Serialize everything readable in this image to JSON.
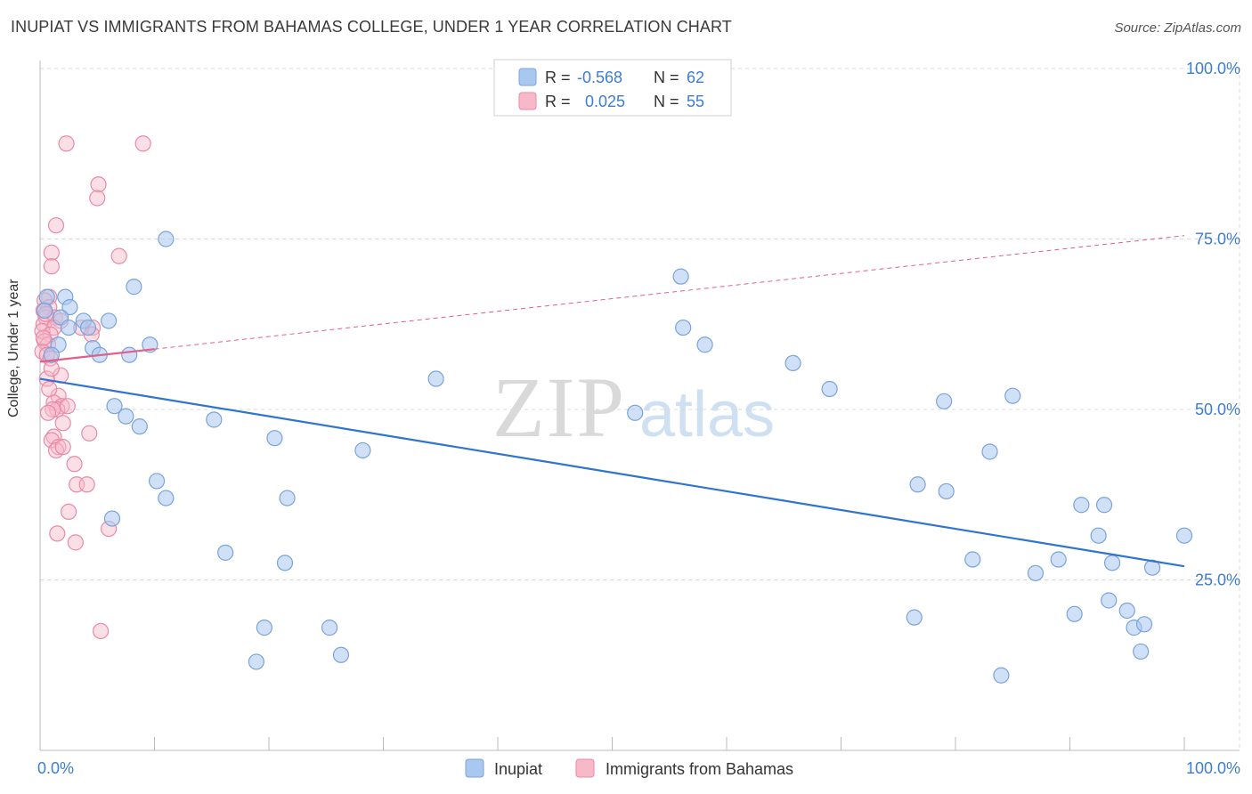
{
  "title": "INUPIAT VS IMMIGRANTS FROM BAHAMAS COLLEGE, UNDER 1 YEAR CORRELATION CHART",
  "source": "Source: ZipAtlas.com",
  "watermark": {
    "zip": "ZIP",
    "atlas": "atlas"
  },
  "legend_top": [
    {
      "r_label": "R =",
      "r_value": "-0.568",
      "n_label": "N =",
      "n_value": "62"
    },
    {
      "r_label": "R =",
      "r_value": "0.025",
      "n_label": "N =",
      "n_value": "55"
    }
  ],
  "colors": {
    "blue_fill": "#a9c8f0",
    "blue_stroke": "#7aa3db",
    "blue_line": "#2e74d0",
    "pink_fill": "#f7b8c9",
    "pink_stroke": "#e98aa6",
    "pink_line": "#e0608a",
    "axis_text": "#3d7dd1",
    "grid": "#d9d9d9"
  },
  "chart_data": {
    "type": "scatter",
    "title": "INUPIAT VS IMMIGRANTS FROM BAHAMAS COLLEGE, UNDER 1 YEAR CORRELATION CHART",
    "xlabel": "",
    "ylabel": "College, Under 1 year",
    "xlim": [
      0,
      100
    ],
    "ylim": [
      0,
      105
    ],
    "x_tick_labels": [
      "0.0%",
      "100.0%"
    ],
    "y_ticks": [
      25,
      50,
      75,
      100
    ],
    "y_tick_labels": [
      "25.0%",
      "50.0%",
      "75.0%",
      "100.0%"
    ],
    "grid": true,
    "legend_placement": "top-center",
    "series": [
      {
        "name": "Inupiat",
        "color": "#a9c8f0",
        "trend": {
          "x0": 0,
          "y0": 54.5,
          "x1": 100,
          "y1": 27.0,
          "style": "solid"
        },
        "points": [
          [
            0.6,
            66.5
          ],
          [
            2.2,
            66.5
          ],
          [
            0.4,
            64.5
          ],
          [
            2.6,
            65.0
          ],
          [
            1.8,
            63.5
          ],
          [
            3.8,
            63.0
          ],
          [
            2.5,
            62.0
          ],
          [
            4.2,
            62.0
          ],
          [
            6.0,
            63.0
          ],
          [
            1.6,
            59.5
          ],
          [
            4.6,
            59.0
          ],
          [
            5.2,
            58.0
          ],
          [
            7.8,
            58.0
          ],
          [
            9.6,
            59.5
          ],
          [
            11.0,
            75.0
          ],
          [
            8.2,
            68.0
          ],
          [
            6.5,
            50.5
          ],
          [
            7.5,
            49.0
          ],
          [
            8.7,
            47.5
          ],
          [
            10.2,
            39.5
          ],
          [
            11.0,
            37.0
          ],
          [
            6.3,
            34.0
          ],
          [
            15.2,
            48.5
          ],
          [
            20.5,
            45.8
          ],
          [
            21.6,
            37.0
          ],
          [
            16.2,
            29.0
          ],
          [
            21.4,
            27.5
          ],
          [
            19.6,
            18.0
          ],
          [
            18.9,
            13.0
          ],
          [
            25.3,
            18.0
          ],
          [
            26.3,
            14.0
          ],
          [
            28.2,
            44.0
          ],
          [
            34.6,
            54.5
          ],
          [
            52.0,
            49.5
          ],
          [
            56.0,
            69.5
          ],
          [
            56.2,
            62.0
          ],
          [
            58.1,
            59.5
          ],
          [
            65.8,
            56.8
          ],
          [
            69.0,
            53.0
          ],
          [
            76.7,
            39.0
          ],
          [
            76.4,
            19.5
          ],
          [
            79.0,
            51.2
          ],
          [
            79.2,
            38.0
          ],
          [
            81.5,
            28.0
          ],
          [
            83.0,
            43.8
          ],
          [
            85.0,
            52.0
          ],
          [
            84.0,
            11.0
          ],
          [
            87.0,
            26.0
          ],
          [
            89.0,
            28.0
          ],
          [
            90.4,
            20.0
          ],
          [
            91.0,
            36.0
          ],
          [
            92.5,
            31.5
          ],
          [
            93.0,
            36.0
          ],
          [
            93.4,
            22.0
          ],
          [
            93.7,
            27.5
          ],
          [
            95.0,
            20.5
          ],
          [
            95.6,
            18.0
          ],
          [
            96.2,
            14.5
          ],
          [
            96.5,
            18.5
          ],
          [
            97.2,
            26.8
          ],
          [
            100.0,
            31.5
          ],
          [
            1.0,
            58.0
          ]
        ]
      },
      {
        "name": "Immigrants from Bahamas",
        "color": "#f7b8c9",
        "trend": {
          "x0": 0,
          "y0": 57.0,
          "x1": 100,
          "y1": 75.5,
          "style": "solid-then-dashed",
          "solid_until_x": 10
        },
        "points": [
          [
            2.3,
            89.0
          ],
          [
            9.0,
            89.0
          ],
          [
            5.1,
            83.0
          ],
          [
            5.0,
            81.0
          ],
          [
            1.4,
            77.0
          ],
          [
            1.0,
            73.0
          ],
          [
            6.9,
            72.5
          ],
          [
            1.0,
            71.0
          ],
          [
            0.8,
            66.5
          ],
          [
            0.4,
            66.0
          ],
          [
            0.8,
            65.0
          ],
          [
            0.3,
            64.5
          ],
          [
            0.5,
            63.5
          ],
          [
            1.3,
            63.5
          ],
          [
            1.8,
            63.0
          ],
          [
            0.3,
            62.5
          ],
          [
            1.2,
            62.0
          ],
          [
            0.2,
            61.5
          ],
          [
            4.6,
            62.0
          ],
          [
            0.9,
            61.0
          ],
          [
            3.6,
            62.0
          ],
          [
            4.5,
            61.0
          ],
          [
            0.4,
            60.0
          ],
          [
            0.7,
            59.5
          ],
          [
            0.2,
            58.5
          ],
          [
            0.6,
            58.0
          ],
          [
            0.9,
            57.5
          ],
          [
            1.8,
            55.0
          ],
          [
            0.6,
            54.5
          ],
          [
            1.6,
            52.0
          ],
          [
            1.2,
            51.0
          ],
          [
            1.9,
            50.5
          ],
          [
            1.5,
            50.0
          ],
          [
            2.4,
            50.5
          ],
          [
            1.1,
            50.0
          ],
          [
            0.7,
            49.5
          ],
          [
            1.2,
            46.0
          ],
          [
            1.0,
            45.5
          ],
          [
            4.3,
            46.5
          ],
          [
            1.6,
            44.5
          ],
          [
            1.4,
            44.0
          ],
          [
            2.0,
            44.5
          ],
          [
            3.2,
            39.0
          ],
          [
            4.1,
            39.0
          ],
          [
            1.5,
            31.8
          ],
          [
            6.0,
            32.5
          ],
          [
            3.1,
            30.5
          ],
          [
            5.3,
            17.5
          ],
          [
            0.5,
            64.0
          ],
          [
            0.3,
            60.5
          ],
          [
            1.0,
            56.0
          ],
          [
            0.8,
            53.0
          ],
          [
            2.0,
            48.0
          ],
          [
            3.0,
            42.0
          ],
          [
            2.5,
            35.0
          ]
        ]
      }
    ]
  },
  "legend_bottom": [
    {
      "label": "Inupiat"
    },
    {
      "label": "Immigrants from Bahamas"
    }
  ]
}
